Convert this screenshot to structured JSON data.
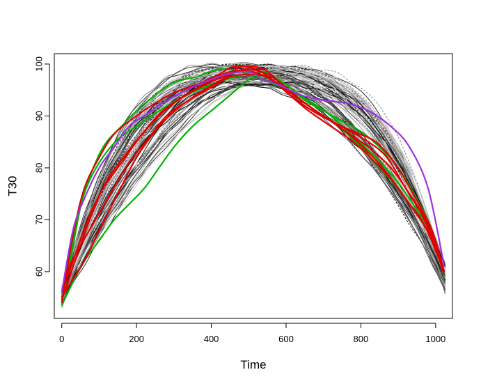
{
  "chart_data": {
    "type": "line",
    "title": "",
    "xlabel": "Time",
    "ylabel": "T30",
    "xlim": [
      -20,
      1045
    ],
    "ylim": [
      51,
      102
    ],
    "xticks": [
      0,
      200,
      400,
      600,
      800,
      1000
    ],
    "yticks": [
      60,
      70,
      80,
      90,
      100
    ],
    "grid": false,
    "legend": "none",
    "x_range": [
      0,
      1023
    ],
    "background_band": {
      "description_count": 90,
      "dashed_count": 25,
      "peak_time_range": [
        430,
        560
      ],
      "peak_value_range": [
        96,
        100
      ],
      "start_range": [
        53.5,
        57
      ],
      "end_range": [
        56.5,
        62
      ],
      "colors": [
        "#d0d0d0",
        "#b0b0b0",
        "#8a8a8a",
        "#5a5a5a",
        "#303030",
        "#101010"
      ]
    },
    "series": [
      {
        "color": "#00b400",
        "points": [
          [
            0,
            53.5
          ],
          [
            30,
            58
          ],
          [
            60,
            62
          ],
          [
            100,
            66
          ],
          [
            140,
            70
          ],
          [
            180,
            73
          ],
          [
            220,
            76
          ],
          [
            260,
            80
          ],
          [
            300,
            84
          ],
          [
            350,
            88
          ],
          [
            400,
            91
          ],
          [
            450,
            94
          ],
          [
            500,
            97
          ],
          [
            540,
            98.5
          ],
          [
            600,
            96
          ],
          [
            650,
            93
          ],
          [
            700,
            91
          ],
          [
            750,
            89
          ],
          [
            800,
            87
          ],
          [
            850,
            84
          ],
          [
            900,
            80
          ],
          [
            950,
            74
          ],
          [
            990,
            68
          ],
          [
            1023,
            59
          ]
        ]
      },
      {
        "color": "#00b400",
        "points": [
          [
            0,
            54
          ],
          [
            25,
            63
          ],
          [
            55,
            74
          ],
          [
            90,
            81
          ],
          [
            120,
            85
          ],
          [
            160,
            88
          ],
          [
            200,
            91
          ],
          [
            250,
            94
          ],
          [
            300,
            96.5
          ],
          [
            360,
            97.5
          ],
          [
            420,
            99
          ],
          [
            480,
            98.5
          ],
          [
            540,
            97
          ],
          [
            600,
            95
          ],
          [
            660,
            93
          ],
          [
            720,
            90
          ],
          [
            780,
            86
          ],
          [
            840,
            82
          ],
          [
            890,
            78
          ],
          [
            940,
            73
          ],
          [
            990,
            67
          ],
          [
            1023,
            60
          ]
        ]
      },
      {
        "color": "#00b400",
        "points": [
          [
            0,
            55
          ],
          [
            30,
            66
          ],
          [
            60,
            75
          ],
          [
            100,
            81
          ],
          [
            150,
            85.5
          ],
          [
            200,
            88
          ],
          [
            260,
            91
          ],
          [
            320,
            93.5
          ],
          [
            380,
            95.5
          ],
          [
            440,
            97
          ],
          [
            500,
            98
          ],
          [
            560,
            97
          ],
          [
            620,
            94
          ],
          [
            680,
            91
          ],
          [
            740,
            88
          ],
          [
            800,
            84
          ],
          [
            850,
            80
          ],
          [
            900,
            76
          ],
          [
            950,
            71
          ],
          [
            995,
            66
          ],
          [
            1023,
            60
          ]
        ]
      },
      {
        "color": "#e00000",
        "points": [
          [
            0,
            54
          ],
          [
            30,
            67
          ],
          [
            60,
            76
          ],
          [
            100,
            82
          ],
          [
            140,
            86.5
          ],
          [
            190,
            89.5
          ],
          [
            240,
            92
          ],
          [
            300,
            94.5
          ],
          [
            360,
            96
          ],
          [
            420,
            98
          ],
          [
            460,
            99.5
          ],
          [
            520,
            99
          ],
          [
            570,
            96.5
          ],
          [
            620,
            93.5
          ],
          [
            670,
            91
          ],
          [
            720,
            89
          ],
          [
            780,
            87
          ],
          [
            840,
            85
          ],
          [
            890,
            81
          ],
          [
            940,
            75
          ],
          [
            990,
            68
          ],
          [
            1023,
            60
          ]
        ]
      },
      {
        "color": "#e00000",
        "points": [
          [
            0,
            55
          ],
          [
            25,
            58
          ],
          [
            60,
            62
          ],
          [
            100,
            68
          ],
          [
            150,
            75
          ],
          [
            200,
            82
          ],
          [
            260,
            88
          ],
          [
            320,
            92
          ],
          [
            380,
            95
          ],
          [
            440,
            97.5
          ],
          [
            480,
            99.5
          ],
          [
            540,
            99
          ],
          [
            590,
            96
          ],
          [
            640,
            93
          ],
          [
            700,
            90
          ],
          [
            760,
            87
          ],
          [
            820,
            83
          ],
          [
            870,
            79
          ],
          [
            920,
            74
          ],
          [
            970,
            69
          ],
          [
            1023,
            60
          ]
        ]
      },
      {
        "color": "#e00000",
        "points": [
          [
            0,
            56
          ],
          [
            30,
            62
          ],
          [
            70,
            70
          ],
          [
            110,
            76
          ],
          [
            160,
            81
          ],
          [
            210,
            86
          ],
          [
            260,
            90
          ],
          [
            310,
            93
          ],
          [
            370,
            95.5
          ],
          [
            430,
            97.5
          ],
          [
            490,
            99
          ],
          [
            550,
            98
          ],
          [
            600,
            95.5
          ],
          [
            650,
            92.5
          ],
          [
            700,
            90
          ],
          [
            760,
            87
          ],
          [
            820,
            84
          ],
          [
            880,
            80
          ],
          [
            930,
            75
          ],
          [
            980,
            69
          ],
          [
            1023,
            60
          ]
        ]
      },
      {
        "color": "#e00000",
        "points": [
          [
            0,
            54.5
          ],
          [
            40,
            63
          ],
          [
            80,
            71
          ],
          [
            120,
            77.5
          ],
          [
            170,
            82.5
          ],
          [
            220,
            87
          ],
          [
            270,
            91
          ],
          [
            330,
            94
          ],
          [
            390,
            96.5
          ],
          [
            450,
            98.5
          ],
          [
            510,
            98.5
          ],
          [
            560,
            97
          ],
          [
            610,
            94
          ],
          [
            660,
            91
          ],
          [
            720,
            88
          ],
          [
            780,
            85
          ],
          [
            840,
            81
          ],
          [
            890,
            77
          ],
          [
            940,
            72
          ],
          [
            985,
            67
          ],
          [
            1023,
            59.5
          ]
        ]
      },
      {
        "color": "#e00000",
        "points": [
          [
            0,
            56
          ],
          [
            20,
            61
          ],
          [
            50,
            65
          ],
          [
            90,
            70
          ],
          [
            130,
            75
          ],
          [
            180,
            81
          ],
          [
            230,
            85.5
          ],
          [
            280,
            90
          ],
          [
            340,
            93
          ],
          [
            400,
            95.5
          ],
          [
            450,
            97.5
          ],
          [
            500,
            98
          ],
          [
            550,
            97.5
          ],
          [
            600,
            95
          ],
          [
            650,
            92.5
          ],
          [
            700,
            90
          ],
          [
            760,
            87.5
          ],
          [
            820,
            85
          ],
          [
            870,
            82
          ],
          [
            920,
            76
          ],
          [
            970,
            70
          ],
          [
            1023,
            60
          ]
        ]
      },
      {
        "color": "#9b30e0",
        "points": [
          [
            0,
            56
          ],
          [
            30,
            68
          ],
          [
            60,
            74
          ],
          [
            100,
            80
          ],
          [
            140,
            84
          ],
          [
            180,
            88
          ],
          [
            220,
            90
          ],
          [
            270,
            92.5
          ],
          [
            320,
            94.5
          ],
          [
            380,
            96.5
          ],
          [
            440,
            98
          ],
          [
            500,
            98.5
          ],
          [
            540,
            97
          ],
          [
            580,
            96
          ],
          [
            640,
            94
          ],
          [
            700,
            93
          ],
          [
            760,
            92.5
          ],
          [
            820,
            91
          ],
          [
            880,
            88
          ],
          [
            930,
            84
          ],
          [
            980,
            76
          ],
          [
            1023,
            61
          ]
        ]
      }
    ]
  }
}
